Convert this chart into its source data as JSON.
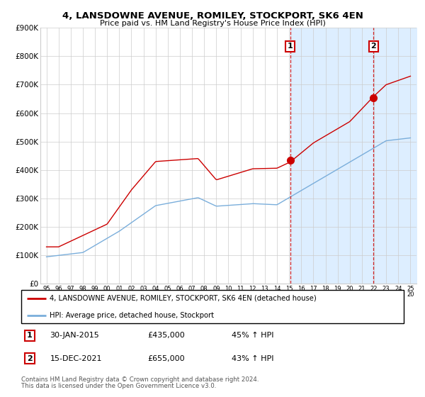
{
  "title": "4, LANSDOWNE AVENUE, ROMILEY, STOCKPORT, SK6 4EN",
  "subtitle": "Price paid vs. HM Land Registry's House Price Index (HPI)",
  "ylim": [
    0,
    900000
  ],
  "yticks": [
    0,
    100000,
    200000,
    300000,
    400000,
    500000,
    600000,
    700000,
    800000,
    900000
  ],
  "ytick_labels": [
    "£0",
    "£100K",
    "£200K",
    "£300K",
    "£400K",
    "£500K",
    "£600K",
    "£700K",
    "£800K",
    "£900K"
  ],
  "red_line_color": "#cc0000",
  "blue_line_color": "#7aaedb",
  "shading_color": "#ddeeff",
  "grid_color": "#cccccc",
  "sale1_year": 2015.08,
  "sale1_price": 435000,
  "sale2_year": 2021.96,
  "sale2_price": 655000,
  "annotation1": {
    "label": "1",
    "date": "30-JAN-2015",
    "price": "£435,000",
    "pct": "45% ↑ HPI"
  },
  "annotation2": {
    "label": "2",
    "date": "15-DEC-2021",
    "price": "£655,000",
    "pct": "43% ↑ HPI"
  },
  "legend_line1": "4, LANSDOWNE AVENUE, ROMILEY, STOCKPORT, SK6 4EN (detached house)",
  "legend_line2": "HPI: Average price, detached house, Stockport",
  "footer1": "Contains HM Land Registry data © Crown copyright and database right 2024.",
  "footer2": "This data is licensed under the Open Government Licence v3.0.",
  "background_color": "#ffffff"
}
